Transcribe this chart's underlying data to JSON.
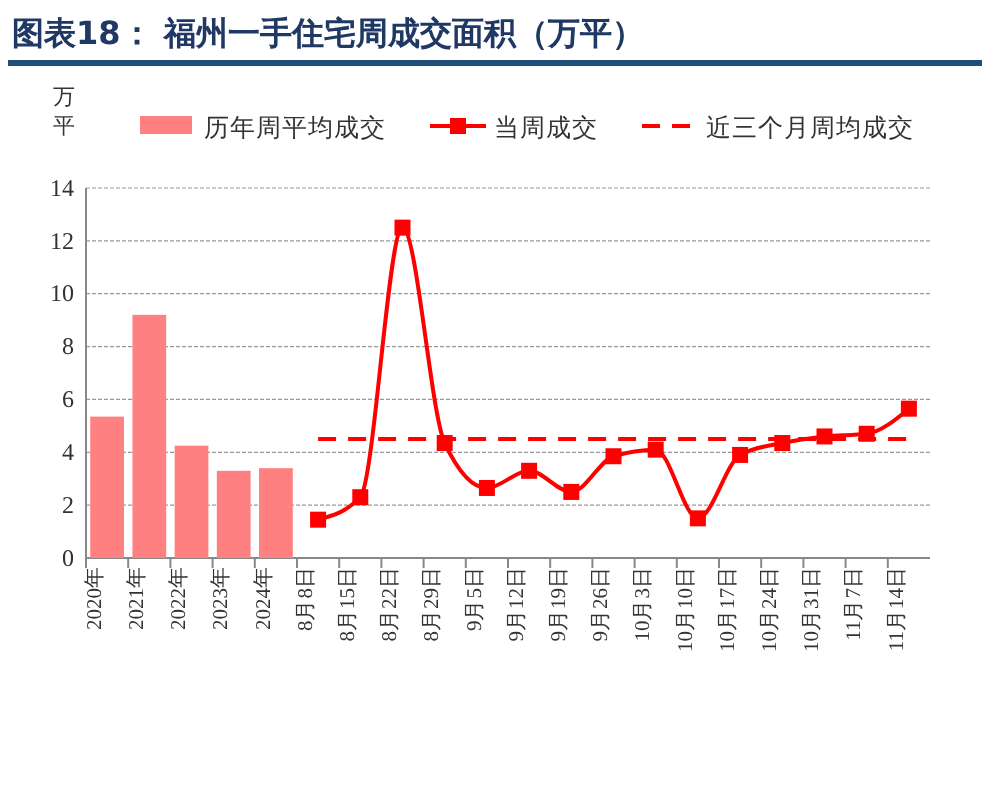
{
  "chart_data": {
    "type": "bar",
    "title": "图表18：  福州一手住宅周成交面积（万平）",
    "ylabel": "万平",
    "categories": [
      "2020年",
      "2021年",
      "2022年",
      "2023年",
      "2024年",
      "8月8日",
      "8月15日",
      "8月22日",
      "8月29日",
      "9月5日",
      "9月12日",
      "9月19日",
      "9月26日",
      "10月3日",
      "10月10日",
      "10月17日",
      "10月24日",
      "10月31日",
      "11月7日",
      "11月14日"
    ],
    "series": [
      {
        "name": "历年周平均成交",
        "color": "#ff8080",
        "values": [
          5.35,
          9.2,
          4.25,
          3.3,
          3.4,
          null,
          null,
          null,
          null,
          null,
          null,
          null,
          null,
          null,
          null,
          null,
          null,
          null,
          null,
          null
        ]
      },
      {
        "name": "当周成交",
        "type": "line",
        "color": "#ff0000",
        "marker": "square",
        "line_style": "solid",
        "values": [
          null,
          null,
          null,
          null,
          null,
          1.45,
          2.3,
          12.5,
          4.35,
          2.65,
          3.3,
          2.5,
          3.85,
          4.1,
          1.5,
          3.9,
          4.35,
          4.6,
          4.7,
          5.65
        ]
      },
      {
        "name": "近三个月周均成交",
        "type": "line",
        "color": "#ff0000",
        "marker": "none",
        "line_style": "dashed",
        "values": [
          null,
          null,
          null,
          null,
          null,
          4.5,
          4.5,
          4.5,
          4.5,
          4.5,
          4.5,
          4.5,
          4.5,
          4.5,
          4.5,
          4.5,
          4.5,
          4.5,
          4.5,
          4.5
        ]
      }
    ],
    "ylim": [
      0,
      14
    ],
    "yticks": [
      0,
      2,
      4,
      6,
      8,
      10,
      12,
      14
    ],
    "grid": "y",
    "legend": "top"
  }
}
